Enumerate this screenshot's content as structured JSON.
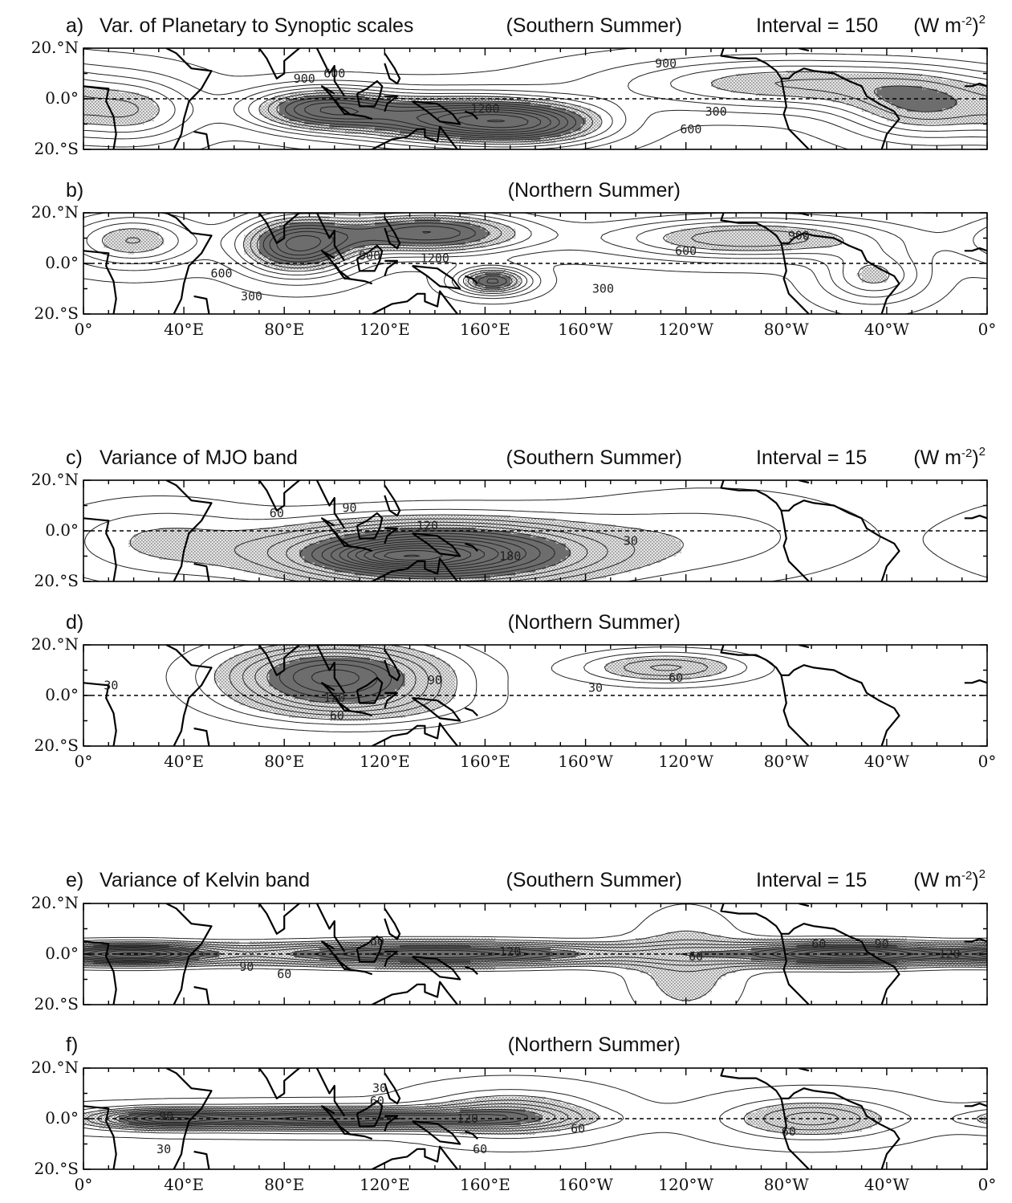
{
  "figure": {
    "panels": [
      {
        "id": "a",
        "letter": "a)",
        "title": "Var. of Planetary to Synoptic scales",
        "season": "(Southern Summer)",
        "interval_text": "Interval = 150",
        "units_text": "(W m",
        "units_exp": "-2",
        "units_close": ")",
        "units_pow": "2"
      },
      {
        "id": "b",
        "letter": "b)",
        "title": "",
        "season": "(Northern Summer)",
        "interval_text": "",
        "units_text": "",
        "units_exp": "",
        "units_close": "",
        "units_pow": ""
      },
      {
        "id": "c",
        "letter": "c)",
        "title": "Variance of MJO band",
        "season": "(Southern Summer)",
        "interval_text": "Interval = 15",
        "units_text": "(W m",
        "units_exp": "-2",
        "units_close": ")",
        "units_pow": "2"
      },
      {
        "id": "d",
        "letter": "d)",
        "title": "",
        "season": "(Northern Summer)",
        "interval_text": "",
        "units_text": "",
        "units_exp": "",
        "units_close": "",
        "units_pow": ""
      },
      {
        "id": "e",
        "letter": "e)",
        "title": "Variance of Kelvin band",
        "season": "(Southern Summer)",
        "interval_text": "Interval = 15",
        "units_text": "(W m",
        "units_exp": "-2",
        "units_close": ")",
        "units_pow": "2"
      },
      {
        "id": "f",
        "letter": "f)",
        "title": "",
        "season": "(Northern Summer)",
        "interval_text": "",
        "units_text": "",
        "units_exp": "",
        "units_close": "",
        "units_pow": ""
      }
    ],
    "x_ticks": [
      "0°",
      "40°E",
      "80°E",
      "120°E",
      "160°E",
      "160°W",
      "120°W",
      "80°W",
      "40°W",
      "0°"
    ],
    "y_ticks": [
      "20.°N",
      "0.0°",
      "20.°S"
    ]
  },
  "chart_data": [
    {
      "type": "heatmap",
      "panel": "a",
      "title": "Var. of Planetary to Synoptic scales (Southern Summer)",
      "interval": 150,
      "units": "(W m-2)2",
      "xlim": [
        0,
        360
      ],
      "ylim": [
        -20,
        20
      ],
      "blobs": [
        {
          "lon": 95,
          "lat": -4,
          "rx": 28,
          "ry": 8,
          "peak": 1350
        },
        {
          "lon": 148,
          "lat": -8,
          "rx": 40,
          "ry": 9,
          "peak": 1500
        },
        {
          "lon": 180,
          "lat": -10,
          "rx": 30,
          "ry": 8,
          "peak": 1000
        },
        {
          "lon": 282,
          "lat": 6,
          "rx": 70,
          "ry": 10,
          "peak": 800
        },
        {
          "lon": 335,
          "lat": -4,
          "rx": 30,
          "ry": 12,
          "peak": 800
        },
        {
          "lon": 20,
          "lat": -5,
          "rx": 25,
          "ry": 12,
          "peak": 700
        }
      ],
      "base": 250,
      "shade_light": 900,
      "shade_dark": 1200,
      "contour_labels": [
        {
          "lon": 88,
          "lat": 8,
          "text": "900"
        },
        {
          "lon": 100,
          "lat": 10,
          "text": "600"
        },
        {
          "lon": 160,
          "lat": -4,
          "text": "1200"
        },
        {
          "lon": 252,
          "lat": -5,
          "text": "300"
        },
        {
          "lon": 242,
          "lat": -12,
          "text": "600"
        },
        {
          "lon": 232,
          "lat": 14,
          "text": "900"
        }
      ]
    },
    {
      "type": "heatmap",
      "panel": "b",
      "title": "(Northern Summer)",
      "interval": 150,
      "units": "(W m-2)2",
      "xlim": [
        0,
        360
      ],
      "ylim": [
        -20,
        20
      ],
      "blobs": [
        {
          "lon": 85,
          "lat": 7,
          "rx": 22,
          "ry": 11,
          "peak": 1500
        },
        {
          "lon": 137,
          "lat": 12,
          "rx": 38,
          "ry": 8,
          "peak": 1400
        },
        {
          "lon": 163,
          "lat": -7,
          "rx": 14,
          "ry": 5,
          "peak": 1300
        },
        {
          "lon": 265,
          "lat": 10,
          "rx": 55,
          "ry": 8,
          "peak": 950
        },
        {
          "lon": 20,
          "lat": 9,
          "rx": 25,
          "ry": 10,
          "peak": 800
        },
        {
          "lon": 315,
          "lat": -5,
          "rx": 20,
          "ry": 10,
          "peak": 700
        }
      ],
      "base": 250,
      "shade_light": 900,
      "shade_dark": 1200,
      "contour_labels": [
        {
          "lon": 55,
          "lat": -4,
          "text": "600"
        },
        {
          "lon": 67,
          "lat": -13,
          "text": "300"
        },
        {
          "lon": 114,
          "lat": 3,
          "text": "900"
        },
        {
          "lon": 140,
          "lat": 2,
          "text": "1200"
        },
        {
          "lon": 240,
          "lat": 5,
          "text": "600"
        },
        {
          "lon": 207,
          "lat": -10,
          "text": "300"
        },
        {
          "lon": 285,
          "lat": 11,
          "text": "900"
        }
      ]
    },
    {
      "type": "heatmap",
      "panel": "c",
      "title": "Variance of MJO band (Southern Summer)",
      "interval": 15,
      "units": "(W m-2)2",
      "xlim": [
        0,
        360
      ],
      "ylim": [
        -20,
        20
      ],
      "blobs": [
        {
          "lon": 140,
          "lat": -9,
          "rx": 60,
          "ry": 12,
          "peak": 200
        },
        {
          "lon": 125,
          "lat": -10,
          "rx": 25,
          "ry": 4,
          "peak": 60
        },
        {
          "lon": 30,
          "lat": -4,
          "rx": 40,
          "ry": 15,
          "peak": 40
        },
        {
          "lon": 250,
          "lat": -2,
          "rx": 60,
          "ry": 18,
          "peak": 30
        }
      ],
      "base": 20,
      "shade_light": 60,
      "shade_dark": 120,
      "contour_labels": [
        {
          "lon": 77,
          "lat": 7,
          "text": "60"
        },
        {
          "lon": 106,
          "lat": 9,
          "text": "90"
        },
        {
          "lon": 137,
          "lat": 2,
          "text": "120"
        },
        {
          "lon": 170,
          "lat": -10,
          "text": "180"
        },
        {
          "lon": 218,
          "lat": -4,
          "text": "30"
        }
      ]
    },
    {
      "type": "heatmap",
      "panel": "d",
      "title": "(Northern Summer)",
      "interval": 15,
      "units": "(W m-2)2",
      "xlim": [
        0,
        360
      ],
      "ylim": [
        -20,
        20
      ],
      "blobs": [
        {
          "lon": 100,
          "lat": 8,
          "rx": 42,
          "ry": 12,
          "peak": 150
        },
        {
          "lon": 232,
          "lat": 11,
          "rx": 32,
          "ry": 6,
          "peak": 75
        },
        {
          "lon": 110,
          "lat": -4,
          "rx": 45,
          "ry": 8,
          "peak": 40
        }
      ],
      "base": 18,
      "shade_light": 60,
      "shade_dark": 120,
      "contour_labels": [
        {
          "lon": 11,
          "lat": 4,
          "text": "30"
        },
        {
          "lon": 100,
          "lat": -1,
          "text": "120"
        },
        {
          "lon": 140,
          "lat": 6,
          "text": "90"
        },
        {
          "lon": 101,
          "lat": -8,
          "text": "60"
        },
        {
          "lon": 204,
          "lat": 3,
          "text": "30"
        },
        {
          "lon": 236,
          "lat": 7,
          "text": "60"
        }
      ]
    },
    {
      "type": "heatmap",
      "panel": "e",
      "title": "Variance of Kelvin band (Southern Summer)",
      "interval": 15,
      "units": "(W m-2)2",
      "xlim": [
        0,
        360
      ],
      "ylim": [
        -20,
        20
      ],
      "blobs": [
        {
          "lon": 20,
          "lat": 0,
          "rx": 30,
          "ry": 4,
          "peak": 160
        },
        {
          "lon": 140,
          "lat": 0,
          "rx": 80,
          "ry": 4.5,
          "peak": 150
        },
        {
          "lon": 305,
          "lat": 0,
          "rx": 45,
          "ry": 4.5,
          "peak": 170
        },
        {
          "lon": 240,
          "lat": -5,
          "rx": 25,
          "ry": 25,
          "peak": 40
        }
      ],
      "base": 30,
      "shade_light": 60,
      "shade_dark": 120,
      "contour_labels": [
        {
          "lon": 117,
          "lat": 5,
          "text": "60"
        },
        {
          "lon": 170,
          "lat": 1,
          "text": "120"
        },
        {
          "lon": 65,
          "lat": -5,
          "text": "90"
        },
        {
          "lon": 80,
          "lat": -8,
          "text": "60"
        },
        {
          "lon": 244,
          "lat": -1,
          "text": "60"
        },
        {
          "lon": 293,
          "lat": 4,
          "text": "60"
        },
        {
          "lon": 318,
          "lat": 4,
          "text": "90"
        },
        {
          "lon": 345,
          "lat": 0,
          "text": "120"
        }
      ]
    },
    {
      "type": "heatmap",
      "panel": "f",
      "title": "(Northern Summer)",
      "interval": 15,
      "units": "(W m-2)2",
      "xlim": [
        0,
        360
      ],
      "ylim": [
        -20,
        20
      ],
      "blobs": [
        {
          "lon": 100,
          "lat": 0,
          "rx": 70,
          "ry": 4,
          "peak": 150
        },
        {
          "lon": 30,
          "lat": 0,
          "rx": 25,
          "ry": 3.5,
          "peak": 100
        },
        {
          "lon": 290,
          "lat": 0,
          "rx": 30,
          "ry": 7,
          "peak": 70
        },
        {
          "lon": 170,
          "lat": 2,
          "rx": 30,
          "ry": 8,
          "peak": 70
        }
      ],
      "base": 28,
      "shade_light": 60,
      "shade_dark": 120,
      "contour_labels": [
        {
          "lon": 118,
          "lat": 12,
          "text": "30"
        },
        {
          "lon": 117,
          "lat": 7,
          "text": "60"
        },
        {
          "lon": 33,
          "lat": 1,
          "text": "90"
        },
        {
          "lon": 153,
          "lat": 0,
          "text": "120"
        },
        {
          "lon": 32,
          "lat": -12,
          "text": "30"
        },
        {
          "lon": 158,
          "lat": -12,
          "text": "60"
        },
        {
          "lon": 197,
          "lat": -4,
          "text": "60"
        },
        {
          "lon": 281,
          "lat": -5,
          "text": "60"
        }
      ]
    }
  ]
}
